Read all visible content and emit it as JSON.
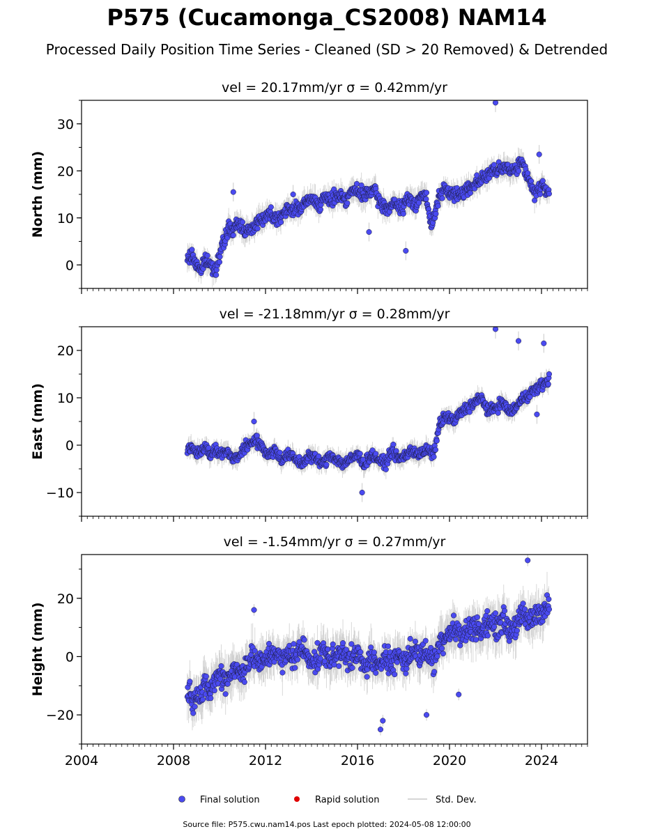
{
  "title": "P575 (Cucamonga_CS2008) NAM14",
  "subtitle": "Processed Daily Position Time Series - Cleaned (SD > 20 Removed) & Detrended",
  "legend": {
    "final": "Final solution",
    "rapid": "Rapid solution",
    "std": "Std. Dev."
  },
  "source_note": "Source file: P575.cwu.nam14.pos  Last epoch plotted: 2024-05-08 12:00:00",
  "colors": {
    "final": "#4a4af0",
    "rapid": "#e00000",
    "std": "#c8c8c8",
    "axis": "#000000"
  },
  "chart_data": [
    {
      "type": "scatter",
      "title": "vel = 20.17mm/yr   σ = 0.42mm/yr",
      "ylabel": "North (mm)",
      "xlim": [
        2004.0,
        2026.0
      ],
      "ylim": [
        -5,
        35
      ],
      "yticks": [
        0,
        10,
        20,
        30
      ],
      "ytick_labels": [
        "0",
        "10",
        "20",
        "30"
      ],
      "xticks": [
        2004,
        2008,
        2012,
        2016,
        2020,
        2024
      ],
      "xtick_labels": [
        "",
        "",
        "",
        "",
        "",
        ""
      ],
      "series": [
        {
          "name": "Final solution",
          "x": [
            2008.6,
            2008.8,
            2009.0,
            2009.2,
            2009.4,
            2009.6,
            2009.8,
            2010.0,
            2010.2,
            2010.4,
            2010.6,
            2010.8,
            2011.0,
            2011.3,
            2011.6,
            2011.9,
            2012.2,
            2012.5,
            2012.8,
            2013.1,
            2013.4,
            2013.7,
            2014.0,
            2014.3,
            2014.6,
            2014.9,
            2015.2,
            2015.5,
            2015.8,
            2016.1,
            2016.4,
            2016.7,
            2017.0,
            2017.3,
            2017.6,
            2017.9,
            2018.2,
            2018.5,
            2018.8,
            2019.0,
            2019.2,
            2019.5,
            2019.8,
            2020.1,
            2020.4,
            2020.7,
            2021.0,
            2021.3,
            2021.6,
            2021.9,
            2022.2,
            2022.5,
            2022.8,
            2023.1,
            2023.4,
            2023.7,
            2024.0,
            2024.2,
            2024.35
          ],
          "y": [
            1,
            2,
            0,
            -1,
            1,
            0,
            -1,
            2,
            5,
            8,
            7,
            9,
            8,
            7,
            9,
            10,
            11,
            10,
            11,
            12,
            12,
            13,
            14,
            13,
            14,
            14,
            15,
            14,
            16,
            15,
            15,
            16,
            13,
            12,
            13,
            12,
            14,
            13,
            15,
            14,
            8,
            14,
            16,
            15,
            15,
            16,
            17,
            18,
            19,
            20,
            20,
            21,
            20,
            22,
            19,
            15,
            17,
            16,
            14
          ]
        },
        {
          "name": "Rapid solution",
          "x": [],
          "y": []
        }
      ],
      "outliers": {
        "x": [
          2022.0,
          2010.6,
          2013.2,
          2018.1,
          2016.5,
          2023.9
        ],
        "y": [
          34.5,
          15.5,
          15,
          3,
          7,
          23.5
        ]
      }
    },
    {
      "type": "scatter",
      "title": "vel = -21.18mm/yr   σ = 0.28mm/yr",
      "ylabel": "East (mm)",
      "xlim": [
        2004.0,
        2026.0
      ],
      "ylim": [
        -15,
        25
      ],
      "yticks": [
        -10,
        0,
        10,
        20
      ],
      "ytick_labels": [
        "−10",
        "0",
        "10",
        "20"
      ],
      "xticks": [
        2004,
        2008,
        2012,
        2016,
        2020,
        2024
      ],
      "xtick_labels": [
        "",
        "",
        "",
        "",
        "",
        ""
      ],
      "series": [
        {
          "name": "Final solution",
          "x": [
            2008.6,
            2008.8,
            2009.0,
            2009.2,
            2009.4,
            2009.6,
            2009.8,
            2010.0,
            2010.3,
            2010.6,
            2010.9,
            2011.2,
            2011.5,
            2011.8,
            2012.1,
            2012.4,
            2012.7,
            2013.0,
            2013.3,
            2013.6,
            2013.9,
            2014.2,
            2014.5,
            2014.8,
            2015.1,
            2015.4,
            2015.7,
            2016.0,
            2016.3,
            2016.6,
            2016.9,
            2017.2,
            2017.5,
            2017.8,
            2018.1,
            2018.4,
            2018.7,
            2019.0,
            2019.3,
            2019.6,
            2019.9,
            2020.2,
            2020.5,
            2020.8,
            2021.1,
            2021.4,
            2021.7,
            2022.0,
            2022.3,
            2022.6,
            2022.9,
            2023.2,
            2023.5,
            2023.8,
            2024.1,
            2024.35
          ],
          "y": [
            -1,
            0,
            -2,
            -1,
            0,
            -2,
            -1,
            -2,
            -1,
            -3,
            -2,
            0,
            1,
            0,
            -2,
            -1,
            -3,
            -2,
            -3,
            -4,
            -2,
            -3,
            -4,
            -2,
            -3,
            -4,
            -3,
            -2,
            -4,
            -2,
            -3,
            -4,
            -1,
            -3,
            -2,
            -1,
            -2,
            -1,
            -2,
            5,
            6,
            5,
            7,
            8,
            9,
            10,
            7,
            8,
            9,
            7,
            8,
            10,
            11,
            12,
            13,
            14
          ]
        },
        {
          "name": "Rapid solution",
          "x": [],
          "y": []
        }
      ],
      "outliers": {
        "x": [
          2022.0,
          2023.0,
          2024.1,
          2011.5,
          2016.2,
          2023.8
        ],
        "y": [
          24.5,
          22,
          21.5,
          5,
          -10,
          6.5
        ]
      }
    },
    {
      "type": "scatter",
      "title": "vel = -1.54mm/yr   σ = 0.27mm/yr",
      "ylabel": "Height (mm)",
      "xlim": [
        2004.0,
        2026.0
      ],
      "ylim": [
        -30,
        35
      ],
      "yticks": [
        -20,
        0,
        20
      ],
      "ytick_labels": [
        "−20",
        "0",
        "20"
      ],
      "xticks": [
        2004,
        2008,
        2012,
        2016,
        2020,
        2024
      ],
      "xtick_labels": [
        "2004",
        "2008",
        "2012",
        "2016",
        "2020",
        "2024"
      ],
      "series": [
        {
          "name": "Final solution",
          "x": [
            2008.6,
            2008.8,
            2009.0,
            2009.2,
            2009.4,
            2009.6,
            2009.8,
            2010.0,
            2010.3,
            2010.6,
            2010.9,
            2011.2,
            2011.5,
            2011.8,
            2012.1,
            2012.4,
            2012.7,
            2013.0,
            2013.3,
            2013.6,
            2013.9,
            2014.2,
            2014.5,
            2014.8,
            2015.1,
            2015.4,
            2015.7,
            2016.0,
            2016.3,
            2016.6,
            2016.9,
            2017.2,
            2017.5,
            2017.8,
            2018.1,
            2018.4,
            2018.7,
            2019.0,
            2019.3,
            2019.6,
            2019.9,
            2020.2,
            2020.5,
            2020.8,
            2021.1,
            2021.4,
            2021.7,
            2022.0,
            2022.3,
            2022.6,
            2022.9,
            2023.2,
            2023.5,
            2023.8,
            2024.1,
            2024.35
          ],
          "y": [
            -10,
            -15,
            -12,
            -14,
            -10,
            -12,
            -8,
            -6,
            -8,
            -4,
            -6,
            -2,
            0,
            -3,
            0,
            2,
            -2,
            1,
            0,
            3,
            0,
            -2,
            2,
            -1,
            0,
            3,
            -2,
            1,
            -4,
            0,
            -5,
            2,
            -3,
            1,
            -2,
            3,
            0,
            2,
            -2,
            5,
            8,
            10,
            7,
            9,
            11,
            8,
            12,
            10,
            13,
            9,
            11,
            14,
            12,
            15,
            16,
            17
          ]
        },
        {
          "name": "Rapid solution",
          "x": [],
          "y": []
        }
      ],
      "outliers": {
        "x": [
          2017.0,
          2017.1,
          2023.4,
          2019.0,
          2011.5,
          2020.4
        ],
        "y": [
          -25,
          -22,
          33,
          -20,
          16,
          -13
        ]
      }
    }
  ]
}
